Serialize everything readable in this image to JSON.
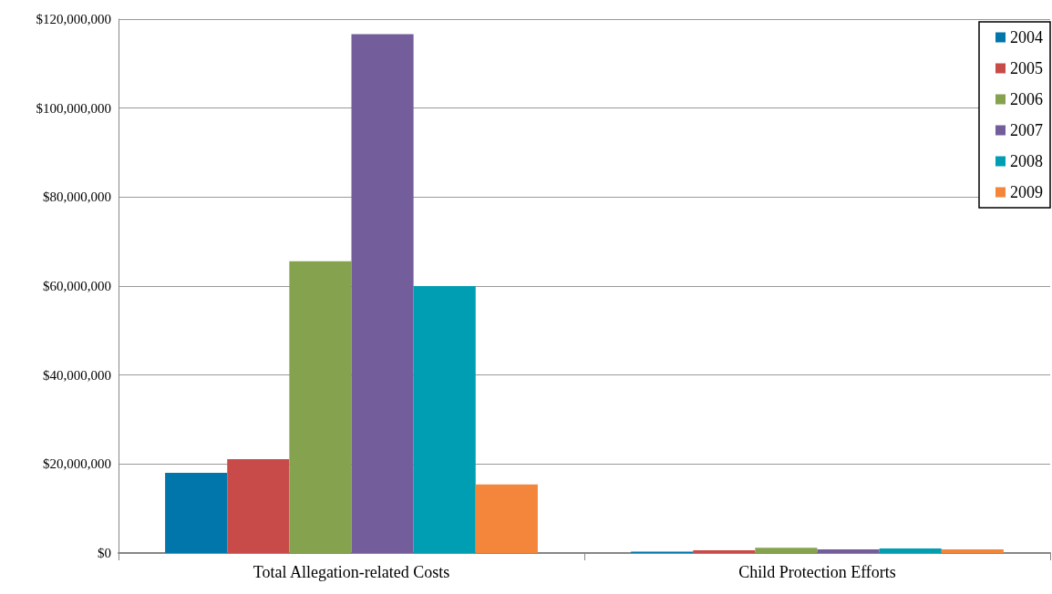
{
  "chart_data": {
    "type": "bar",
    "categories": [
      "Total Allegation-related Costs",
      "Child Protection Efforts"
    ],
    "series": [
      {
        "name": "2004",
        "color": "#0076ab",
        "values": [
          18000000,
          300000
        ]
      },
      {
        "name": "2005",
        "color": "#c84b4a",
        "values": [
          21100000,
          600000
        ]
      },
      {
        "name": "2006",
        "color": "#85a34f",
        "values": [
          65600000,
          1200000
        ]
      },
      {
        "name": "2007",
        "color": "#735e9b",
        "values": [
          116600000,
          800000
        ]
      },
      {
        "name": "2008",
        "color": "#009eb2",
        "values": [
          60000000,
          1000000
        ]
      },
      {
        "name": "2009",
        "color": "#f4863b",
        "values": [
          15400000,
          800000
        ]
      }
    ],
    "ylim": [
      0,
      120000000
    ],
    "yticks": [
      {
        "value": 0,
        "label": "$0"
      },
      {
        "value": 20000000,
        "label": "$20,000,000"
      },
      {
        "value": 40000000,
        "label": "$40,000,000"
      },
      {
        "value": 60000000,
        "label": "$60,000,000"
      },
      {
        "value": 80000000,
        "label": "$80,000,000"
      },
      {
        "value": 100000000,
        "label": "$100,000,000"
      },
      {
        "value": 120000000,
        "label": "$120,000,000"
      }
    ],
    "grid": "y",
    "legend": "top right"
  }
}
